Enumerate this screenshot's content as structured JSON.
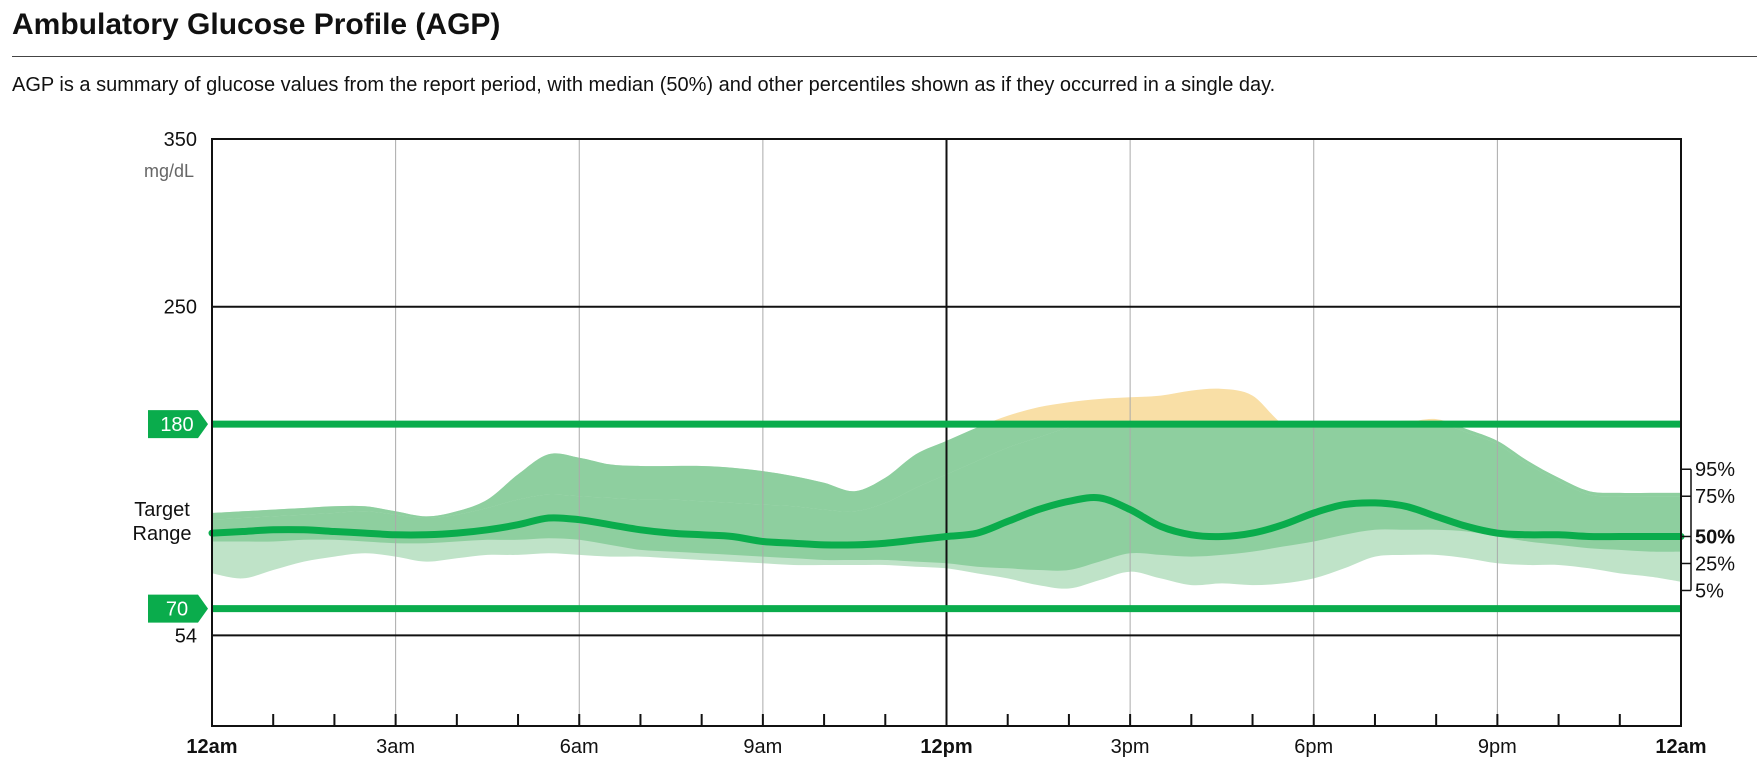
{
  "header": {
    "title": "Ambulatory Glucose Profile (AGP)",
    "subtitle": "AGP is a summary of glucose values from the report period, with median (50%) and other percentiles shown as if they occurred in a single day."
  },
  "chart_data": {
    "type": "area",
    "title": "Ambulatory Glucose Profile (AGP)",
    "ylabel": "mg/dL",
    "ylim": [
      0,
      350
    ],
    "xlim_hours": [
      0,
      24
    ],
    "y_ticks": [
      {
        "value": 350,
        "label": "350"
      },
      {
        "value": 250,
        "label": "250"
      },
      {
        "value": 54,
        "label": "54"
      }
    ],
    "target_range": {
      "low": 70,
      "high": 180,
      "low_label": "70",
      "high_label": "180",
      "label_line1": "Target",
      "label_line2": "Range"
    },
    "x_ticks": [
      {
        "hour": 0,
        "label": "12am",
        "bold": true
      },
      {
        "hour": 3,
        "label": "3am",
        "bold": false
      },
      {
        "hour": 6,
        "label": "6am",
        "bold": false
      },
      {
        "hour": 9,
        "label": "9am",
        "bold": false
      },
      {
        "hour": 12,
        "label": "12pm",
        "bold": true
      },
      {
        "hour": 15,
        "label": "3pm",
        "bold": false
      },
      {
        "hour": 18,
        "label": "6pm",
        "bold": false
      },
      {
        "hour": 21,
        "label": "9pm",
        "bold": false
      },
      {
        "hour": 24,
        "label": "12am",
        "bold": true
      }
    ],
    "percentile_labels": [
      {
        "name": "95%",
        "bold": false
      },
      {
        "name": "75%",
        "bold": false
      },
      {
        "name": "50%",
        "bold": true
      },
      {
        "name": "25%",
        "bold": false
      },
      {
        "name": "5%",
        "bold": false
      }
    ],
    "x": [
      0,
      0.5,
      1,
      1.5,
      2,
      2.5,
      3,
      3.5,
      4,
      4.5,
      5,
      5.5,
      6,
      6.5,
      7,
      7.5,
      8,
      8.5,
      9,
      9.5,
      10,
      10.5,
      11,
      11.5,
      12,
      12.5,
      13,
      13.5,
      14,
      14.5,
      15,
      15.5,
      16,
      16.5,
      17,
      17.5,
      18,
      18.5,
      19,
      19.5,
      20,
      20.5,
      21,
      21.5,
      22,
      22.5,
      23,
      23.5,
      24
    ],
    "series": [
      {
        "name": "95%",
        "values": [
          127,
          128,
          129,
          130,
          131,
          131,
          128,
          125,
          128,
          135,
          150,
          162,
          160,
          156,
          155,
          155,
          155,
          154,
          152,
          149,
          145,
          140,
          148,
          162,
          170,
          178,
          185,
          190,
          193,
          195,
          196,
          197,
          200,
          201,
          197,
          180,
          177,
          177,
          180,
          181,
          183,
          177,
          170,
          158,
          148,
          140,
          139,
          139,
          139
        ]
      },
      {
        "name": "75%",
        "values": [
          123,
          124,
          125,
          126,
          127,
          128,
          126,
          124,
          126,
          130,
          135,
          138,
          137,
          136,
          135,
          135,
          134,
          133,
          132,
          131,
          129,
          128,
          133,
          142,
          150,
          158,
          166,
          172,
          178,
          181,
          183,
          184,
          186,
          188,
          185,
          180,
          180,
          178,
          180,
          182,
          181,
          175,
          168,
          156,
          146,
          138,
          137,
          137,
          137
        ]
      },
      {
        "name": "50%",
        "values": [
          115,
          116,
          117,
          117,
          116,
          115,
          114,
          114,
          115,
          117,
          120,
          124,
          123,
          120,
          117,
          115,
          114,
          113,
          110,
          109,
          108,
          108,
          109,
          111,
          113,
          115,
          122,
          129,
          134,
          136,
          129,
          119,
          114,
          113,
          115,
          120,
          127,
          132,
          133,
          131,
          125,
          119,
          115,
          114,
          114,
          113,
          113,
          113,
          113
        ]
      },
      {
        "name": "25%",
        "values": [
          110,
          110,
          110,
          111,
          111,
          110,
          109,
          109,
          110,
          111,
          111,
          112,
          111,
          108,
          105,
          104,
          103,
          102,
          101,
          100,
          99,
          99,
          99,
          98,
          97,
          95,
          94,
          93,
          93,
          98,
          103,
          102,
          101,
          102,
          104,
          107,
          110,
          114,
          117,
          117,
          117,
          116,
          113,
          110,
          108,
          106,
          105,
          104,
          104
        ]
      },
      {
        "name": "5%",
        "values": [
          91,
          88,
          93,
          98,
          101,
          103,
          101,
          98,
          100,
          102,
          102,
          103,
          102,
          101,
          101,
          100,
          99,
          98,
          97,
          96,
          96,
          96,
          96,
          95,
          94,
          91,
          88,
          84,
          82,
          87,
          92,
          88,
          84,
          85,
          84,
          85,
          88,
          94,
          101,
          102,
          102,
          100,
          97,
          96,
          96,
          94,
          91,
          89,
          86
        ]
      }
    ],
    "colors": {
      "target_line": "#0aac4c",
      "median_line": "#0aac4c",
      "inner_band": "#8ecf9f",
      "outer_band": "#bfe3c8",
      "above_range_band": "#f9dfa6",
      "axis_label_muted": "#666666"
    }
  }
}
